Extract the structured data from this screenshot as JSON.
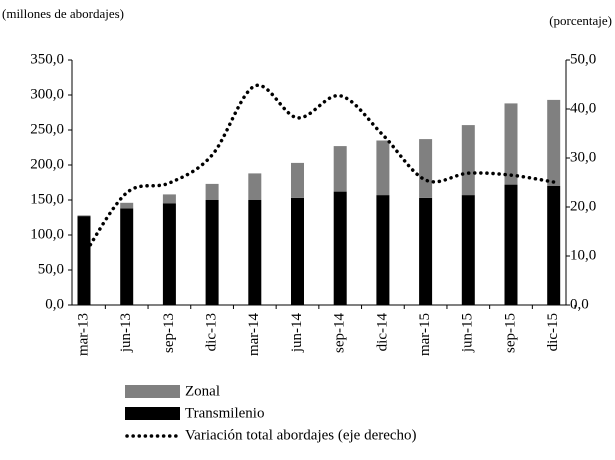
{
  "chart_data": {
    "type": "bar-line",
    "y_label": "(millones de abordajes)",
    "y2_label": "(porcentaje)",
    "categories": [
      "mar-13",
      "jun-13",
      "sep-13",
      "dic-13",
      "mar-14",
      "jun-14",
      "sep-14",
      "dic-14",
      "mar-15",
      "jun-15",
      "sep-15",
      "dic-15"
    ],
    "series": [
      {
        "name": "Zonal",
        "color": "#808080",
        "stack": true,
        "values": [
          1,
          8,
          13,
          23,
          38,
          50,
          65,
          78,
          84,
          100,
          116,
          123
        ]
      },
      {
        "name": "Transmilenio",
        "color": "#000000",
        "stack": true,
        "values": [
          127,
          138,
          145,
          150,
          150,
          153,
          162,
          157,
          153,
          157,
          172,
          170
        ]
      },
      {
        "name": "Variación total abordajes (eje derecho)",
        "color": "#000000",
        "axis": "y2",
        "line": "dotted",
        "values": [
          10.2,
          22.9,
          24.9,
          30.6,
          44.7,
          38.2,
          42.7,
          34.7,
          25.5,
          26.9,
          26.5,
          25.1
        ]
      }
    ],
    "ylim": [
      0,
      350
    ],
    "yticks": [
      {
        "value": 0,
        "label": "0,0"
      },
      {
        "value": 50,
        "label": "50,0"
      },
      {
        "value": 100,
        "label": "100,0"
      },
      {
        "value": 150,
        "label": "150,0"
      },
      {
        "value": 200,
        "label": "200,0"
      },
      {
        "value": 250,
        "label": "250,0"
      },
      {
        "value": 300,
        "label": "300,0"
      },
      {
        "value": 350,
        "label": "350,0"
      }
    ],
    "y2lim": [
      0,
      50
    ],
    "y2ticks": [
      {
        "value": 0,
        "label": "0,0"
      },
      {
        "value": 10,
        "label": "10,0"
      },
      {
        "value": 20,
        "label": "20,0"
      },
      {
        "value": 30,
        "label": "30,0"
      },
      {
        "value": 40,
        "label": "40,0"
      },
      {
        "value": 50,
        "label": "50,0"
      }
    ],
    "legend": "bottom"
  }
}
